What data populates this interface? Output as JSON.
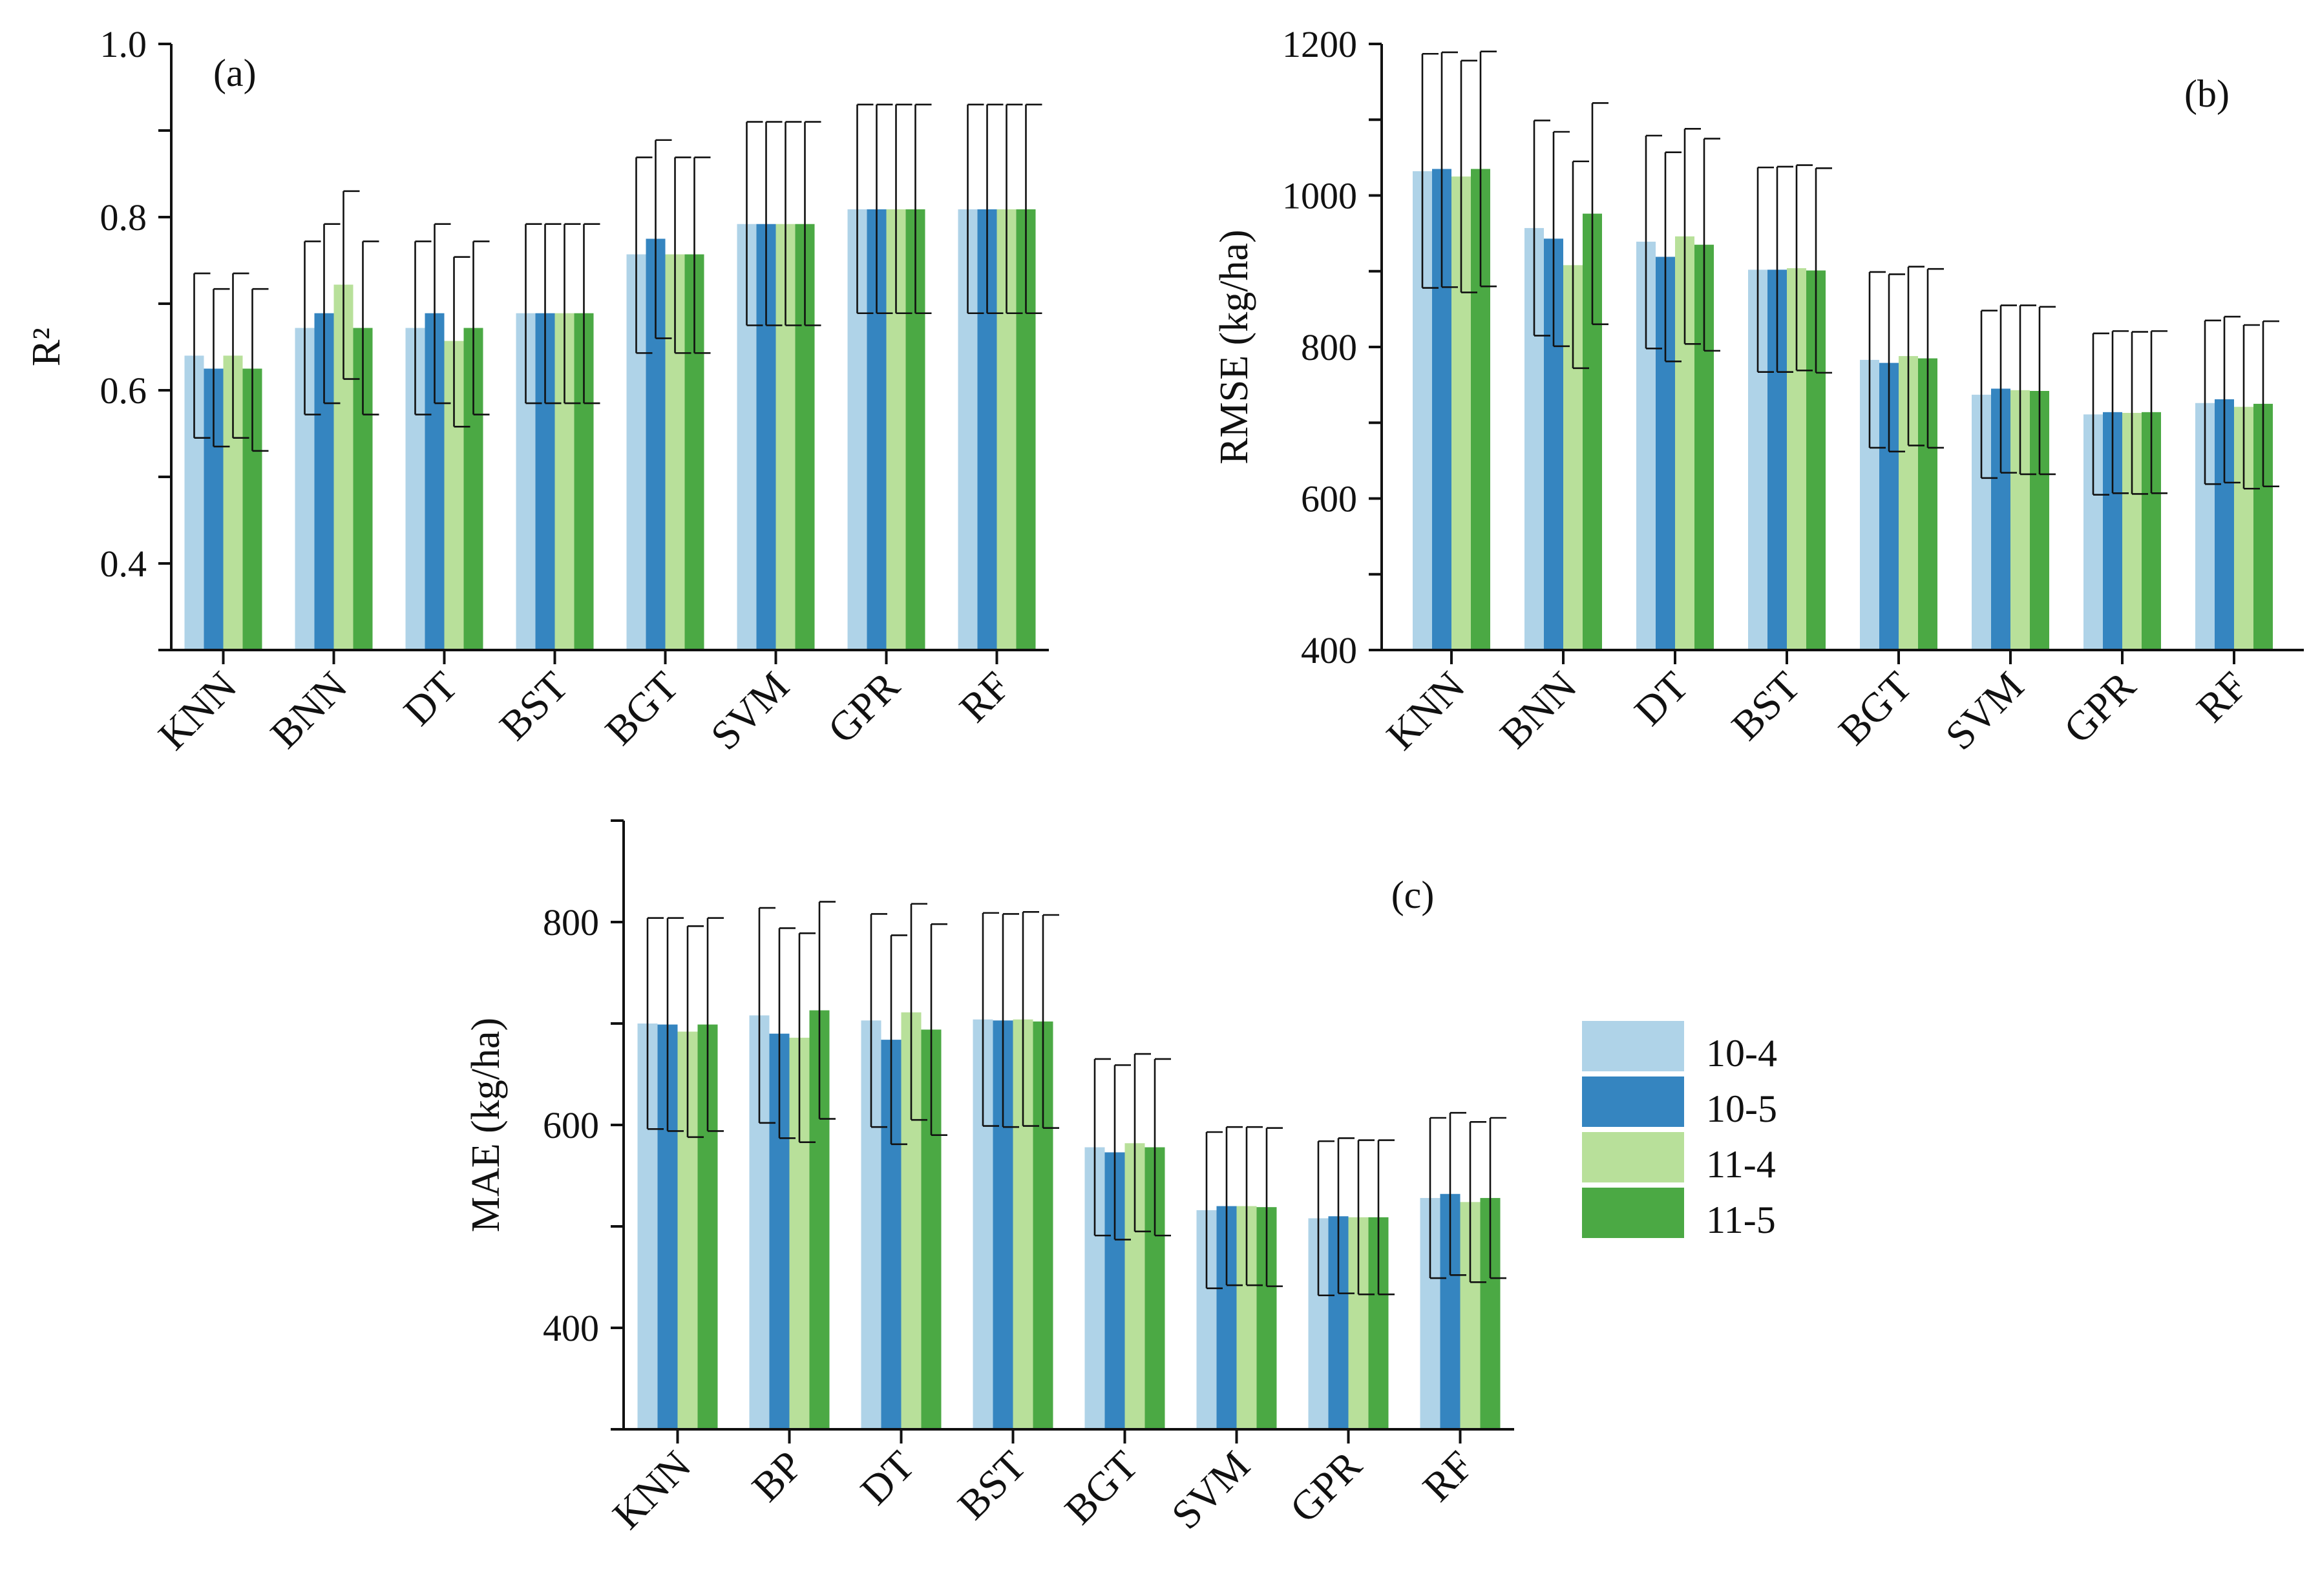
{
  "colors": {
    "10-4": "#afd3e8",
    "10-5": "#3585c0",
    "11-4": "#b8e09a",
    "11-5": "#4ba944"
  },
  "legend": {
    "entries": [
      "10-4",
      "10-5",
      "11-4",
      "11-5"
    ]
  },
  "chart_data": [
    {
      "type": "bar",
      "panel_label": "(a)",
      "ylabel": "R²",
      "ylim": [
        0.3,
        1.0
      ],
      "yticks": [
        "0.4",
        "0.6",
        "0.8",
        "1.0"
      ],
      "categories": [
        "KNN",
        "BNN",
        "DT",
        "BST",
        "BGT",
        "SVM",
        "GPR",
        "RF"
      ],
      "series": [
        {
          "name": "10-4",
          "values": [
            0.64,
            0.672,
            0.672,
            0.689,
            0.757,
            0.792,
            0.809,
            0.809
          ],
          "lower": [
            0.545,
            0.572,
            0.572,
            0.585,
            0.643,
            0.675,
            0.689,
            0.689
          ],
          "upper": [
            0.735,
            0.772,
            0.772,
            0.792,
            0.869,
            0.91,
            0.93,
            0.93
          ]
        },
        {
          "name": "10-5",
          "values": [
            0.625,
            0.689,
            0.689,
            0.689,
            0.775,
            0.792,
            0.809,
            0.809
          ],
          "lower": [
            0.535,
            0.585,
            0.585,
            0.585,
            0.66,
            0.675,
            0.689,
            0.689
          ],
          "upper": [
            0.717,
            0.792,
            0.792,
            0.792,
            0.889,
            0.91,
            0.93,
            0.93
          ]
        },
        {
          "name": "11-4",
          "values": [
            0.64,
            0.722,
            0.657,
            0.689,
            0.757,
            0.792,
            0.809,
            0.809
          ],
          "lower": [
            0.545,
            0.613,
            0.558,
            0.585,
            0.643,
            0.675,
            0.689,
            0.689
          ],
          "upper": [
            0.735,
            0.83,
            0.754,
            0.792,
            0.869,
            0.91,
            0.93,
            0.93
          ]
        },
        {
          "name": "11-5",
          "values": [
            0.625,
            0.672,
            0.672,
            0.689,
            0.757,
            0.792,
            0.809,
            0.809
          ],
          "lower": [
            0.53,
            0.572,
            0.572,
            0.585,
            0.643,
            0.675,
            0.689,
            0.689
          ],
          "upper": [
            0.717,
            0.772,
            0.772,
            0.792,
            0.869,
            0.91,
            0.93,
            0.93
          ]
        }
      ]
    },
    {
      "type": "bar",
      "panel_label": "(b)",
      "ylabel": "RMSE (kg/ha)",
      "ylim": [
        400,
        1200
      ],
      "yticks": [
        "400",
        "600",
        "800",
        "1000",
        "1200"
      ],
      "categories": [
        "KNN",
        "BNN",
        "DT",
        "BST",
        "BGT",
        "SVM",
        "GPR",
        "RF"
      ],
      "series": [
        {
          "name": "10-4",
          "values": [
            1032,
            957,
            939,
            902,
            783,
            737,
            711,
            726
          ],
          "lower": [
            878,
            815,
            798,
            767,
            667,
            627,
            605,
            619
          ],
          "upper": [
            1187,
            1099,
            1079,
            1037,
            899,
            848,
            818,
            835
          ]
        },
        {
          "name": "10-5",
          "values": [
            1035,
            943,
            919,
            902,
            779,
            745,
            714,
            731
          ],
          "lower": [
            879,
            801,
            781,
            767,
            662,
            634,
            607,
            621
          ],
          "upper": [
            1189,
            1084,
            1057,
            1038,
            896,
            855,
            821,
            840
          ]
        },
        {
          "name": "11-4",
          "values": [
            1025,
            908,
            946,
            904,
            788,
            743,
            713,
            721
          ],
          "lower": [
            872,
            772,
            804,
            769,
            670,
            632,
            606,
            613
          ],
          "upper": [
            1178,
            1045,
            1088,
            1040,
            906,
            855,
            820,
            829
          ]
        },
        {
          "name": "11-5",
          "values": [
            1035,
            976,
            935,
            901,
            785,
            742,
            714,
            725
          ],
          "lower": [
            880,
            830,
            795,
            766,
            667,
            632,
            607,
            616
          ],
          "upper": [
            1190,
            1122,
            1075,
            1036,
            903,
            853,
            821,
            834
          ]
        }
      ]
    },
    {
      "type": "bar",
      "panel_label": "(c)",
      "ylabel": "MAE (kg/ha)",
      "ylim": [
        300,
        900
      ],
      "yticks": [
        "400",
        "600",
        "800"
      ],
      "categories": [
        "KNN",
        "BP",
        "DT",
        "BST",
        "BGT",
        "SVM",
        "GPR",
        "RF"
      ],
      "series": [
        {
          "name": "10-4",
          "values": [
            700,
            708,
            703,
            704,
            578,
            516,
            508,
            528
          ],
          "lower": [
            596,
            602,
            598,
            599,
            491,
            439,
            432,
            449
          ],
          "upper": [
            804,
            814,
            808,
            809,
            665,
            593,
            584,
            607
          ]
        },
        {
          "name": "10-5",
          "values": [
            699,
            690,
            684,
            703,
            573,
            520,
            510,
            532
          ],
          "lower": [
            594,
            587,
            581,
            598,
            487,
            442,
            434,
            452
          ],
          "upper": [
            804,
            794,
            787,
            808,
            659,
            598,
            587,
            612
          ]
        },
        {
          "name": "11-4",
          "values": [
            692,
            686,
            711,
            704,
            582,
            520,
            509,
            524
          ],
          "lower": [
            588,
            583,
            605,
            599,
            495,
            442,
            433,
            445
          ],
          "upper": [
            796,
            789,
            818,
            810,
            670,
            598,
            585,
            603
          ]
        },
        {
          "name": "11-5",
          "values": [
            699,
            713,
            694,
            702,
            578,
            519,
            509,
            528
          ],
          "lower": [
            594,
            606,
            590,
            597,
            491,
            441,
            433,
            449
          ],
          "upper": [
            804,
            820,
            798,
            807,
            665,
            597,
            585,
            607
          ]
        }
      ]
    }
  ]
}
